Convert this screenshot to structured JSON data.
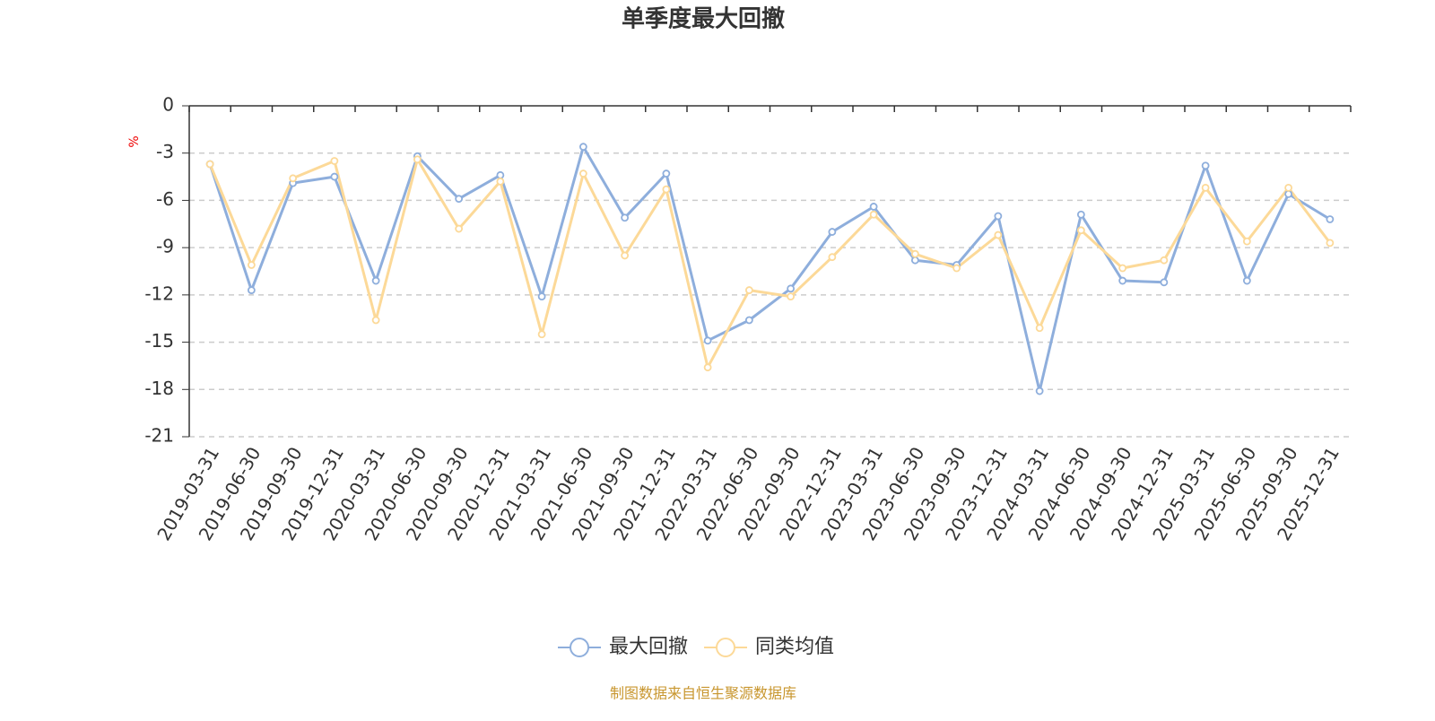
{
  "chart_data": {
    "type": "line",
    "title": "单季度最大回撤",
    "y_label": "%",
    "source": "制图数据来自恒生聚源数据库",
    "categories": [
      "2019-03-31",
      "2019-06-30",
      "2019-09-30",
      "2019-12-31",
      "2020-03-31",
      "2020-06-30",
      "2020-09-30",
      "2020-12-31",
      "2021-03-31",
      "2021-06-30",
      "2021-09-30",
      "2021-12-31",
      "2022-03-31",
      "2022-06-30",
      "2022-09-30",
      "2022-12-31",
      "2023-03-31",
      "2023-06-30",
      "2023-09-30",
      "2023-12-31",
      "2024-03-31",
      "2024-06-30",
      "2024-09-30",
      "2024-12-31",
      "2025-03-31",
      "2025-06-30",
      "2025-09-30",
      "2025-12-31"
    ],
    "series": [
      {
        "name": "最大回撤",
        "color": "#8eaedc",
        "values": [
          -3.7,
          -11.7,
          -4.9,
          -4.5,
          -11.1,
          -3.2,
          -5.9,
          -4.4,
          -12.1,
          -2.6,
          -7.1,
          -4.3,
          -14.9,
          -13.6,
          -11.6,
          -8.0,
          -6.4,
          -9.8,
          -10.1,
          -7.0,
          -18.1,
          -6.9,
          -11.1,
          -11.2,
          -3.8,
          -11.1,
          -5.6,
          -7.2
        ]
      },
      {
        "name": "同类均值",
        "color": "#fcd998",
        "values": [
          -3.7,
          -10.1,
          -4.6,
          -3.5,
          -13.6,
          -3.4,
          -7.8,
          -4.8,
          -14.5,
          -4.3,
          -9.5,
          -5.3,
          -16.6,
          -11.7,
          -12.1,
          -9.6,
          -6.9,
          -9.4,
          -10.3,
          -8.2,
          -14.1,
          -7.9,
          -10.3,
          -9.8,
          -5.2,
          -8.6,
          -5.2,
          -8.7
        ]
      }
    ],
    "ylim": [
      -21,
      0
    ],
    "yticks": [
      0,
      -3,
      -6,
      -9,
      -12,
      -15,
      -18,
      -21
    ],
    "grid": true
  }
}
